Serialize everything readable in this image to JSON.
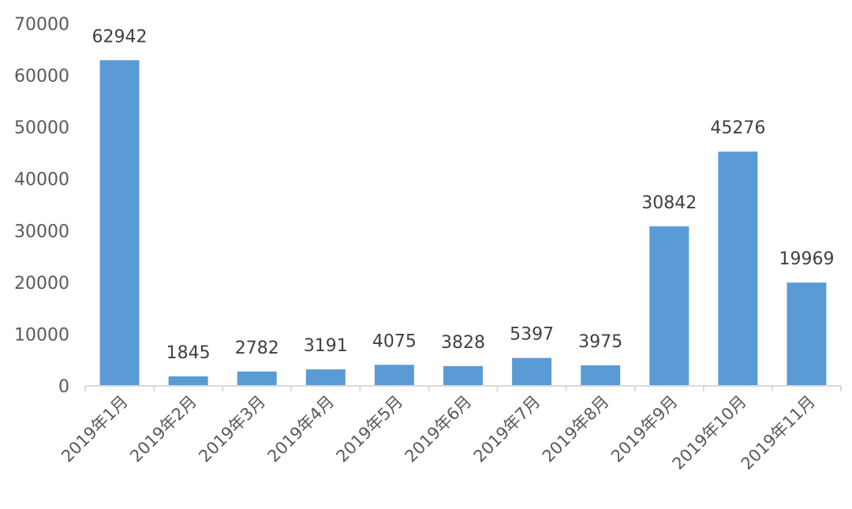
{
  "chart_data": {
    "type": "bar",
    "categories": [
      "2019年1月",
      "2019年2月",
      "2019年3月",
      "2019年4月",
      "2019年5月",
      "2019年6月",
      "2019年7月",
      "2019年8月",
      "2019年9月",
      "2019年10月",
      "2019年11月"
    ],
    "values": [
      62942,
      1845,
      2782,
      3191,
      4075,
      3828,
      5397,
      3975,
      30842,
      45276,
      19969
    ],
    "data_labels": [
      "62942",
      "1845",
      "2782",
      "3191",
      "4075",
      "3828",
      "5397",
      "3975",
      "30842",
      "45276",
      "19969"
    ],
    "y_ticks": [
      "0",
      "10000",
      "20000",
      "30000",
      "40000",
      "50000",
      "60000",
      "70000"
    ],
    "ylim": [
      0,
      70000
    ],
    "grid": false,
    "legend": "none",
    "bar_color": "#5b9bd5",
    "axis_color": "#d9d9d9"
  }
}
